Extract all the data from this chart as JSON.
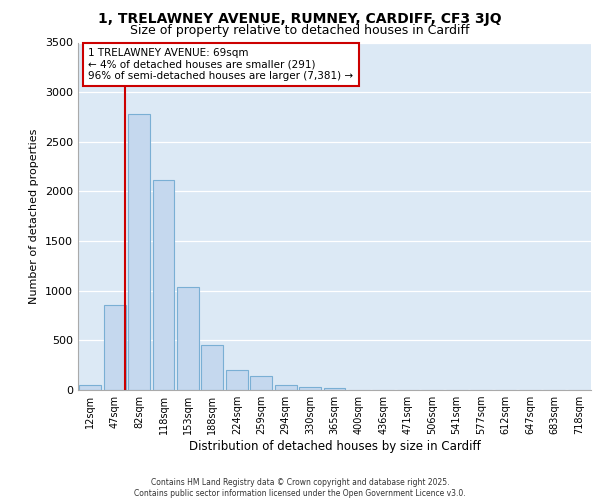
{
  "title_line1": "1, TRELAWNEY AVENUE, RUMNEY, CARDIFF, CF3 3JQ",
  "title_line2": "Size of property relative to detached houses in Cardiff",
  "xlabel": "Distribution of detached houses by size in Cardiff",
  "ylabel": "Number of detached properties",
  "bar_color": "#c5d8ee",
  "bar_edge_color": "#7aafd4",
  "bg_color": "#dce9f5",
  "grid_color": "#ffffff",
  "categories": [
    "12sqm",
    "47sqm",
    "82sqm",
    "118sqm",
    "153sqm",
    "188sqm",
    "224sqm",
    "259sqm",
    "294sqm",
    "330sqm",
    "365sqm",
    "400sqm",
    "436sqm",
    "471sqm",
    "506sqm",
    "541sqm",
    "577sqm",
    "612sqm",
    "647sqm",
    "683sqm",
    "718sqm"
  ],
  "values": [
    55,
    860,
    2780,
    2120,
    1040,
    455,
    205,
    145,
    55,
    35,
    20,
    5,
    5,
    3,
    0,
    0,
    0,
    0,
    0,
    0,
    0
  ],
  "vline_x": 1.42,
  "vline_color": "#cc0000",
  "annotation_title": "1 TRELAWNEY AVENUE: 69sqm",
  "annotation_line2": "← 4% of detached houses are smaller (291)",
  "annotation_line3": "96% of semi-detached houses are larger (7,381) →",
  "ylim": [
    0,
    3500
  ],
  "yticks": [
    0,
    500,
    1000,
    1500,
    2000,
    2500,
    3000,
    3500
  ],
  "footer_line1": "Contains HM Land Registry data © Crown copyright and database right 2025.",
  "footer_line2": "Contains public sector information licensed under the Open Government Licence v3.0."
}
